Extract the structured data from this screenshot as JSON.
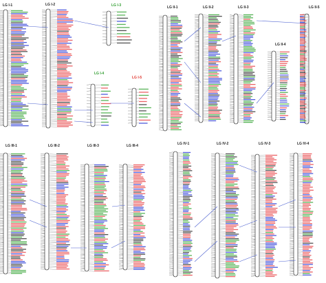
{
  "figure": {
    "panels": [
      {
        "id": "I",
        "groups": [
          {
            "label": "LG I-1",
            "label_color": "#222222",
            "density": "dense"
          },
          {
            "label": "LG I-2",
            "label_color": "#222222",
            "density": "dense"
          },
          {
            "label": "LG I-3",
            "label_color": "#2e9c2e",
            "density": "sparse"
          },
          {
            "label": "LG I-4",
            "label_color": "#2e9c2e",
            "density": "sparse"
          },
          {
            "label": "LG I-5",
            "label_color": "#e0342c",
            "density": "sparse"
          }
        ]
      },
      {
        "id": "II",
        "groups": [
          {
            "label": "LG II-1",
            "label_color": "#222222",
            "density": "dense"
          },
          {
            "label": "LG II-2",
            "label_color": "#222222",
            "density": "dense"
          },
          {
            "label": "LG II-3",
            "label_color": "#222222",
            "density": "dense"
          },
          {
            "label": "LG II-4",
            "label_color": "#222222",
            "density": "medium"
          },
          {
            "label": "LG II-5",
            "label_color": "#222222",
            "density": "dense"
          }
        ]
      },
      {
        "id": "III",
        "groups": [
          {
            "label": "LG III-1",
            "label_color": "#222222",
            "density": "dense"
          },
          {
            "label": "LG III-2",
            "label_color": "#222222",
            "density": "dense"
          },
          {
            "label": "LG III-3",
            "label_color": "#222222",
            "density": "dense"
          },
          {
            "label": "LG III-4",
            "label_color": "#222222",
            "density": "dense"
          }
        ]
      },
      {
        "id": "IV",
        "groups": [
          {
            "label": "LG IV-1",
            "label_color": "#222222",
            "density": "dense"
          },
          {
            "label": "LG IV-2",
            "label_color": "#222222",
            "density": "dense"
          },
          {
            "label": "LG IV-3",
            "label_color": "#222222",
            "density": "dense"
          },
          {
            "label": "LG IV-4",
            "label_color": "#222222",
            "density": "dense"
          }
        ]
      }
    ],
    "marker_colors": {
      "red": "#e8474a",
      "blue": "#2f3fd6",
      "green": "#3aa63a",
      "black": "#333333"
    },
    "connector_color": "#4a5fd0"
  }
}
